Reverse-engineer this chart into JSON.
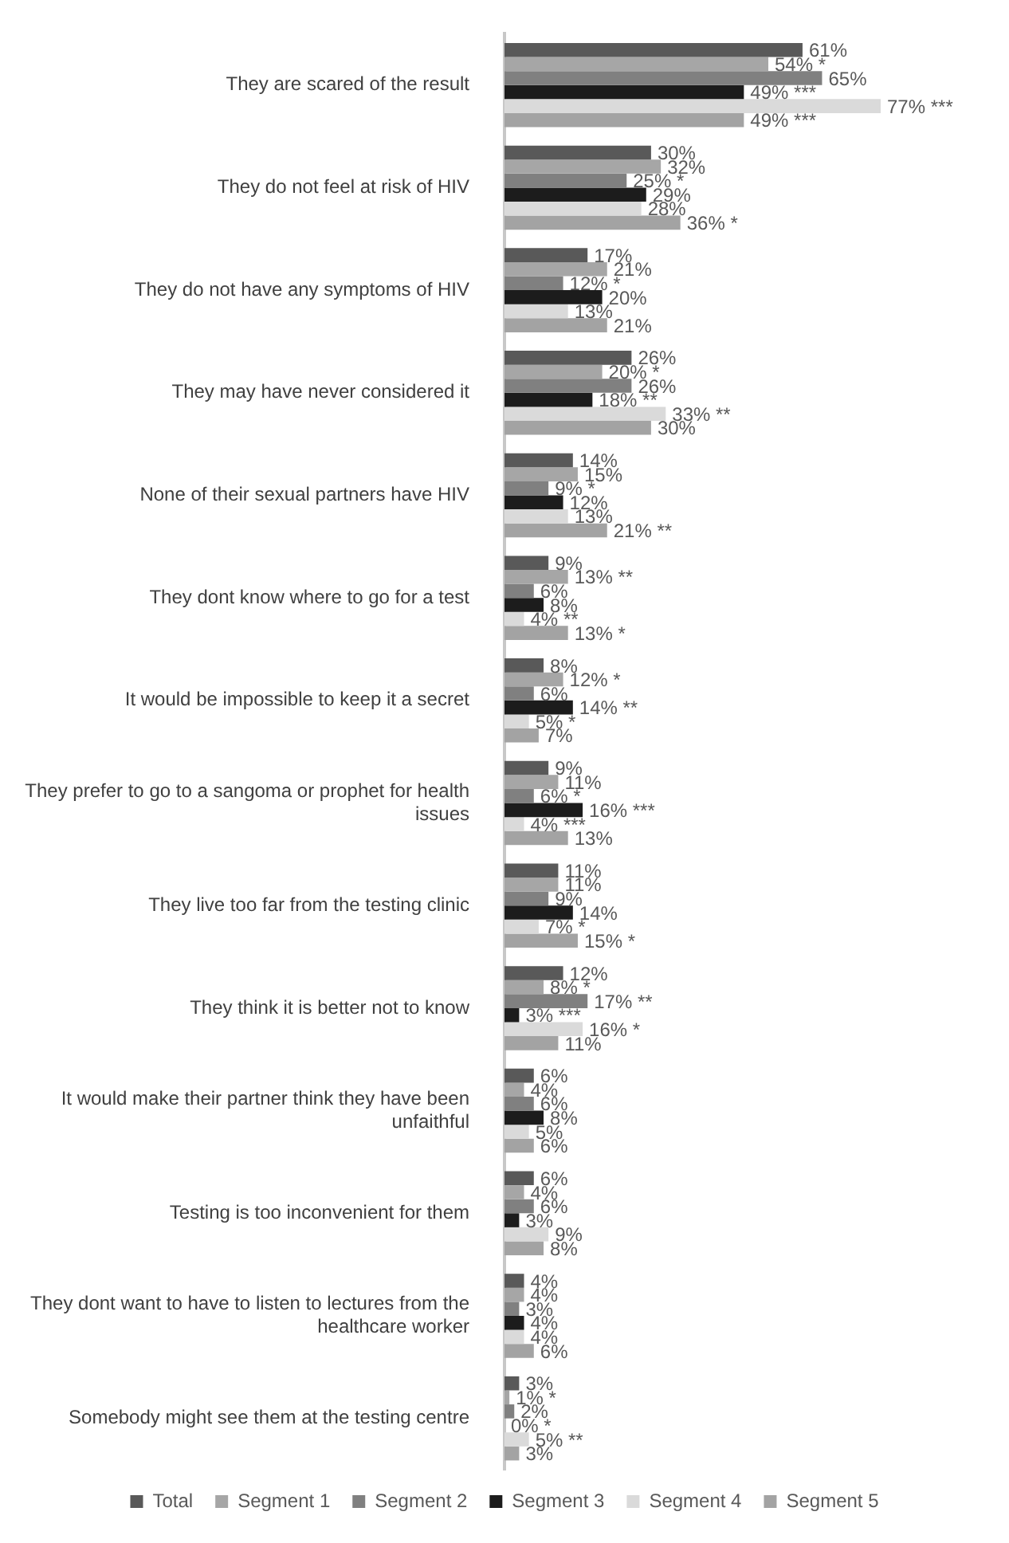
{
  "chart_data": {
    "type": "bar",
    "orientation": "horizontal",
    "legend": "bottom",
    "grid": false,
    "categories": [
      "They are scared of the result",
      "They do not feel at risk of HIV",
      "They do not have any symptoms of HIV",
      "They may have never considered it",
      "None of their sexual partners have HIV",
      "They dont know where to go for a test",
      "It would be impossible to keep it a secret",
      "They prefer to go to a sangoma or prophet for health issues",
      "They live too far from the testing clinic",
      "They think it is better not to know",
      "It would make their partner think they have been unfaithful",
      "Testing is too inconvenient for them",
      "They dont want to have to listen to lectures from the healthcare worker",
      "Somebody might see them at the testing centre"
    ],
    "series": [
      {
        "name": "Total",
        "color": "#595959",
        "values": [
          61,
          30,
          17,
          26,
          14,
          9,
          8,
          9,
          11,
          12,
          6,
          6,
          4,
          3
        ],
        "value_labels": [
          "61%",
          "30%",
          "17%",
          "26%",
          "14%",
          "9%",
          "8%",
          "9%",
          "11%",
          "12%",
          "6%",
          "6%",
          "4%",
          "3%"
        ]
      },
      {
        "name": "Segment 1",
        "color": "#a6a6a6",
        "values": [
          54,
          32,
          21,
          20,
          15,
          13,
          12,
          11,
          11,
          8,
          4,
          4,
          4,
          1
        ],
        "value_labels": [
          "54% *",
          "32%",
          "21%",
          "20% *",
          "15%",
          "13% **",
          "12% *",
          "11%",
          "11%",
          "8% *",
          "4%",
          "4%",
          "4%",
          "1% *"
        ]
      },
      {
        "name": "Segment 2",
        "color": "#808080",
        "values": [
          65,
          25,
          12,
          26,
          9,
          6,
          6,
          6,
          9,
          17,
          6,
          6,
          3,
          2
        ],
        "value_labels": [
          "65%",
          "25% *",
          "12% *",
          "26%",
          "9% *",
          "6%",
          "6%",
          "6% *",
          "9%",
          "17% **",
          "6%",
          "6%",
          "3%",
          "2%"
        ]
      },
      {
        "name": "Segment 3",
        "color": "#1c1c1c",
        "values": [
          49,
          29,
          20,
          18,
          12,
          8,
          14,
          16,
          14,
          3,
          8,
          3,
          4,
          0
        ],
        "value_labels": [
          "49% ***",
          "29%",
          "20%",
          "18% **",
          "12%",
          "8%",
          "14% **",
          "16% ***",
          "14%",
          "3% ***",
          "8%",
          "3%",
          "4%",
          "0% *"
        ]
      },
      {
        "name": "Segment 4",
        "color": "#dadada",
        "values": [
          77,
          28,
          13,
          33,
          13,
          4,
          5,
          4,
          7,
          16,
          5,
          9,
          4,
          5
        ],
        "value_labels": [
          "77% ***",
          "28%",
          "13%",
          "33% **",
          "13%",
          "4% **",
          "5% *",
          "4% ***",
          "7% *",
          "16% *",
          "5%",
          "9%",
          "4%",
          "5% **"
        ]
      },
      {
        "name": "Segment 5",
        "color": "#a3a3a3",
        "values": [
          49,
          36,
          21,
          30,
          21,
          13,
          7,
          13,
          15,
          11,
          6,
          8,
          6,
          3
        ],
        "value_labels": [
          "49% ***",
          "36% *",
          "21%",
          "30%",
          "21% **",
          "13% *",
          "7%",
          "13%",
          "15% *",
          "11%",
          "6%",
          "8%",
          "6%",
          "3%"
        ]
      }
    ]
  }
}
